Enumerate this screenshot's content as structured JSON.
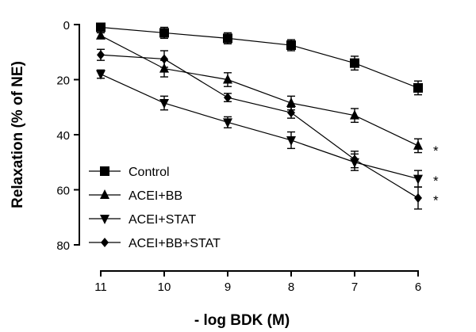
{
  "chart_data": {
    "type": "line",
    "title": "",
    "xlabel": "- log BDK (M)",
    "ylabel": "Relaxation (% of NE)",
    "x": [
      11,
      10,
      9,
      8,
      7,
      6
    ],
    "xlim": [
      11,
      6
    ],
    "ylim": [
      0,
      80
    ],
    "y_inverted": true,
    "yticks": [
      0,
      20,
      40,
      60,
      80
    ],
    "xticks": [
      11,
      10,
      9,
      8,
      7,
      6
    ],
    "grid": false,
    "legend_position": "bottom-left",
    "series": [
      {
        "name": "Control",
        "marker": "square",
        "values": [
          1,
          3,
          5,
          7.5,
          14,
          23
        ],
        "errors": [
          1,
          2,
          2,
          2,
          2.5,
          2.5
        ]
      },
      {
        "name": "ACEI+BB",
        "marker": "triangle-up",
        "values": [
          4,
          16,
          20,
          28.5,
          33,
          44
        ],
        "errors": [
          1,
          3,
          2.5,
          2.5,
          2.5,
          2.5
        ]
      },
      {
        "name": "ACEI+STAT",
        "marker": "triangle-down",
        "values": [
          18,
          28.5,
          35.5,
          42,
          50,
          56
        ],
        "errors": [
          1.5,
          2.5,
          2,
          3,
          3,
          3
        ]
      },
      {
        "name": "ACEI+BB+STAT",
        "marker": "diamond",
        "values": [
          11,
          12.5,
          26.5,
          32,
          49,
          63
        ],
        "errors": [
          2,
          3,
          1.5,
          2,
          3,
          4
        ]
      }
    ],
    "annotations": [
      {
        "text": "*",
        "x": 6,
        "y": 44
      },
      {
        "text": "*",
        "x": 6,
        "y": 55
      },
      {
        "text": "*",
        "x": 6,
        "y": 62
      }
    ]
  }
}
